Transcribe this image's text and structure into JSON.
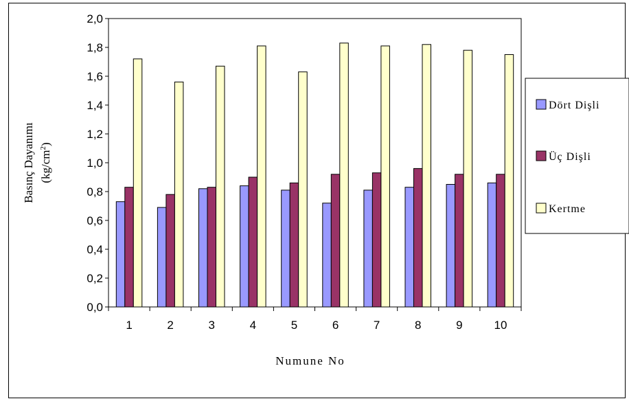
{
  "chart_data": {
    "type": "bar",
    "title": "",
    "xlabel": "Numune No",
    "ylabel_line1": "Basınç Dayanımı",
    "ylabel_line2": "(kg/cm",
    "ylabel_sup": "2",
    "ylabel_close": ")",
    "categories": [
      "1",
      "2",
      "3",
      "4",
      "5",
      "6",
      "7",
      "8",
      "9",
      "10"
    ],
    "series": [
      {
        "name": "Dört Dişli",
        "color": "#9999ff",
        "values": [
          0.73,
          0.69,
          0.82,
          0.84,
          0.81,
          0.72,
          0.81,
          0.83,
          0.85,
          0.86
        ]
      },
      {
        "name": "Üç Dişli",
        "color": "#993366",
        "values": [
          0.83,
          0.78,
          0.83,
          0.9,
          0.86,
          0.92,
          0.93,
          0.96,
          0.92,
          0.92
        ]
      },
      {
        "name": "Kertme",
        "color": "#ffffcc",
        "values": [
          1.72,
          1.56,
          1.67,
          1.81,
          1.63,
          1.83,
          1.81,
          1.82,
          1.78,
          1.75
        ]
      }
    ],
    "ylim": [
      0,
      2.0
    ],
    "yticks": [
      "0,0",
      "0,2",
      "0,4",
      "0,6",
      "0,8",
      "1,0",
      "1,2",
      "1,4",
      "1,6",
      "1,8",
      "2,0"
    ],
    "grid": false,
    "legend_position": "right"
  }
}
